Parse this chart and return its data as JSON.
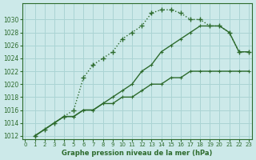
{
  "title": "Graphe pression niveau de la mer (hPa)",
  "background_color": "#cce9e9",
  "grid_color": "#aad4d4",
  "line_color": "#2d6b2d",
  "ylim": [
    1011.5,
    1032.5
  ],
  "xlim": [
    -0.3,
    23.3
  ],
  "yticks": [
    1012,
    1014,
    1016,
    1018,
    1020,
    1022,
    1024,
    1026,
    1028,
    1030
  ],
  "xticks": [
    0,
    1,
    2,
    3,
    4,
    5,
    6,
    7,
    8,
    9,
    10,
    11,
    12,
    13,
    14,
    15,
    16,
    17,
    18,
    19,
    20,
    21,
    22,
    23
  ],
  "line1_x": [
    1,
    2,
    3,
    4,
    5,
    6,
    7,
    8,
    9,
    10,
    11,
    12,
    13,
    14,
    15,
    16,
    17,
    18,
    19,
    20,
    21,
    22,
    23
  ],
  "line1_y": [
    1012,
    1013,
    1014,
    1015,
    1016,
    1021,
    1023,
    1024,
    1025,
    1027,
    1028,
    1029,
    1031,
    1031.5,
    1031.5,
    1031,
    1030,
    1030,
    1029,
    1029,
    1028,
    1025,
    1025
  ],
  "line2_x": [
    1,
    2,
    3,
    4,
    5,
    6,
    7,
    8,
    9,
    10,
    11,
    12,
    13,
    14,
    15,
    16,
    17,
    18,
    19,
    20,
    21,
    22,
    23
  ],
  "line2_y": [
    1012,
    1013,
    1014,
    1015,
    1015,
    1016,
    1016,
    1017,
    1018,
    1019,
    1020,
    1022,
    1023,
    1025,
    1026,
    1027,
    1028,
    1029,
    1029,
    1029,
    1028,
    1025,
    1025
  ],
  "line3_x": [
    1,
    2,
    3,
    4,
    5,
    6,
    7,
    8,
    9,
    10,
    11,
    12,
    13,
    14,
    15,
    16,
    17,
    18,
    19,
    20,
    21,
    22,
    23
  ],
  "line3_y": [
    1012,
    1013,
    1014,
    1015,
    1015,
    1016,
    1016,
    1017,
    1017,
    1018,
    1018,
    1019,
    1020,
    1020,
    1021,
    1021,
    1022,
    1022,
    1022,
    1022,
    1022,
    1022,
    1022
  ]
}
